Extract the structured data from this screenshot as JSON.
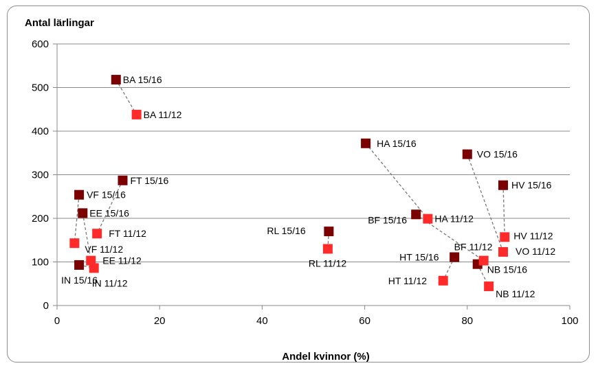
{
  "chart_data": {
    "type": "scatter",
    "ylabel": "Antal lärlingar",
    "xlabel": "Andel kvinnor (%)",
    "xlim": [
      0,
      100
    ],
    "ylim": [
      0,
      600
    ],
    "xticks": [
      0,
      20,
      40,
      60,
      80,
      100
    ],
    "yticks": [
      0,
      100,
      200,
      300,
      400,
      500,
      600
    ],
    "grid": "horizontal",
    "series": [
      {
        "color": "#7b0000",
        "points": [
          {
            "label": "BA 15/16",
            "x": 11.5,
            "y": 518
          },
          {
            "label": "HA 15/16",
            "x": 60.2,
            "y": 372
          },
          {
            "label": "VO 15/16",
            "x": 80.0,
            "y": 347
          },
          {
            "label": "FT 15/16",
            "x": 12.8,
            "y": 287
          },
          {
            "label": "HV 15/16",
            "x": 87.0,
            "y": 276
          },
          {
            "label": "VF 15/16",
            "x": 4.3,
            "y": 254
          },
          {
            "label": "EE 15/16",
            "x": 5.0,
            "y": 212
          },
          {
            "label": "BF 15/16",
            "x": 70.0,
            "y": 209
          },
          {
            "label": "RL 15/16",
            "x": 53.0,
            "y": 170
          },
          {
            "label": "HT 15/16",
            "x": 77.5,
            "y": 111
          },
          {
            "label": "NB 15/16",
            "x": 82.0,
            "y": 95
          },
          {
            "label": "IN 15/16",
            "x": 4.3,
            "y": 93
          }
        ]
      },
      {
        "color": "#ff2a2a",
        "points": [
          {
            "label": "BA 11/12",
            "x": 15.5,
            "y": 438
          },
          {
            "label": "HA 11/12",
            "x": 72.3,
            "y": 199
          },
          {
            "label": "FT 11/12",
            "x": 7.8,
            "y": 165
          },
          {
            "label": "HV 11/12",
            "x": 87.3,
            "y": 157
          },
          {
            "label": "VF 11/12",
            "x": 3.4,
            "y": 143
          },
          {
            "label": "RL 11/12",
            "x": 52.8,
            "y": 130
          },
          {
            "label": "VO 11/12",
            "x": 87.0,
            "y": 123
          },
          {
            "label": "EE 11/12",
            "x": 6.6,
            "y": 103
          },
          {
            "label": "BF 11/12",
            "x": 83.2,
            "y": 103
          },
          {
            "label": "IN 11/12",
            "x": 7.2,
            "y": 86
          },
          {
            "label": "HT 11/12",
            "x": 75.3,
            "y": 57
          },
          {
            "label": "NB 11/12",
            "x": 84.2,
            "y": 44
          }
        ]
      }
    ],
    "connections": [
      [
        "BA 15/16",
        "BA 11/12"
      ],
      [
        "HA 15/16",
        "HA 11/12"
      ],
      [
        "VO 15/16",
        "VO 11/12"
      ],
      [
        "FT 15/16",
        "FT 11/12"
      ],
      [
        "HV 15/16",
        "HV 11/12"
      ],
      [
        "VF 15/16",
        "VF 11/12"
      ],
      [
        "EE 15/16",
        "EE 11/12"
      ],
      [
        "BF 15/16",
        "BF 11/12"
      ],
      [
        "RL 15/16",
        "RL 11/12"
      ],
      [
        "HT 15/16",
        "HT 11/12"
      ],
      [
        "NB 15/16",
        "NB 11/12"
      ],
      [
        "IN 15/16",
        "IN 11/12"
      ]
    ]
  }
}
